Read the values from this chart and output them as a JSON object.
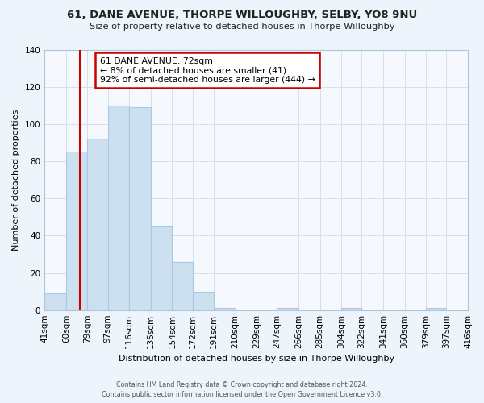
{
  "title": "61, DANE AVENUE, THORPE WILLOUGHBY, SELBY, YO8 9NU",
  "subtitle": "Size of property relative to detached houses in Thorpe Willoughby",
  "xlabel": "Distribution of detached houses by size in Thorpe Willoughby",
  "ylabel": "Number of detached properties",
  "bar_edges": [
    41,
    60,
    79,
    97,
    116,
    135,
    154,
    172,
    191,
    210,
    229,
    247,
    266,
    285,
    304,
    322,
    341,
    360,
    379,
    397,
    416
  ],
  "bar_heights": [
    9,
    85,
    92,
    110,
    109,
    45,
    26,
    10,
    1,
    0,
    0,
    1,
    0,
    0,
    1,
    0,
    0,
    0,
    1,
    0
  ],
  "bar_color": "#cce0f0",
  "bar_edge_color": "#a8c8e8",
  "vline_x": 72,
  "vline_color": "#cc0000",
  "annotation_line1": "61 DANE AVENUE: 72sqm",
  "annotation_line2": "← 8% of detached houses are smaller (41)",
  "annotation_line3": "92% of semi-detached houses are larger (444) →",
  "annotation_box_color": "#cc0000",
  "ylim": [
    0,
    140
  ],
  "yticks": [
    0,
    20,
    40,
    60,
    80,
    100,
    120,
    140
  ],
  "tick_labels": [
    "41sqm",
    "60sqm",
    "79sqm",
    "97sqm",
    "116sqm",
    "135sqm",
    "154sqm",
    "172sqm",
    "191sqm",
    "210sqm",
    "229sqm",
    "247sqm",
    "266sqm",
    "285sqm",
    "304sqm",
    "322sqm",
    "341sqm",
    "360sqm",
    "379sqm",
    "397sqm",
    "416sqm"
  ],
  "footer_line1": "Contains HM Land Registry data © Crown copyright and database right 2024.",
  "footer_line2": "Contains public sector information licensed under the Open Government Licence v3.0.",
  "background_color": "#eef4fb",
  "plot_background_color": "#f5f9fd",
  "grid_color": "#d0dce8"
}
